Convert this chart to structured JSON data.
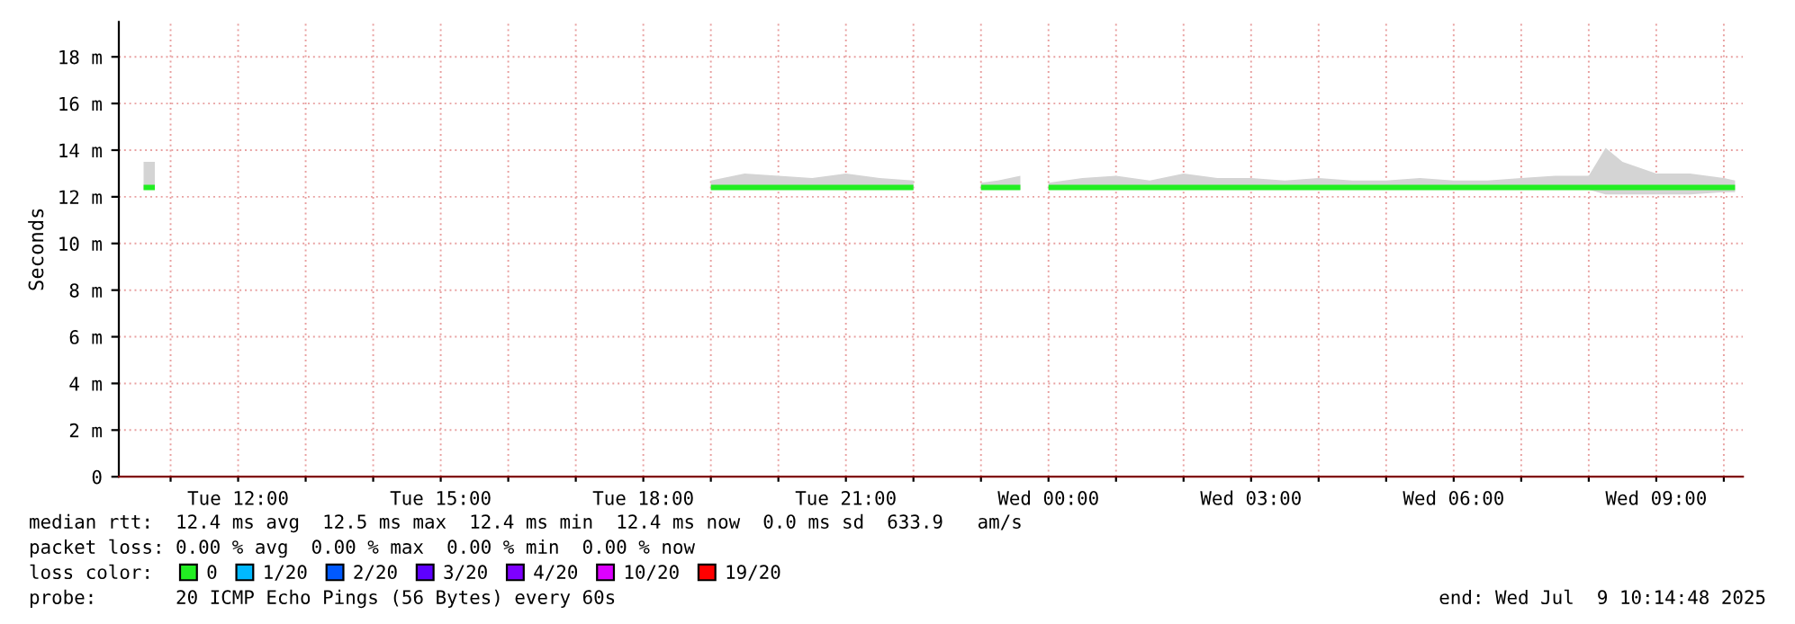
{
  "chart_data": {
    "type": "line",
    "ylabel": "Seconds",
    "x": [
      "2025-07-08T10:36",
      "2025-07-08T10:46",
      "2025-07-08T10:56",
      "2025-07-08T19:00",
      "2025-07-08T19:30",
      "2025-07-08T20:00",
      "2025-07-08T20:30",
      "2025-07-08T21:00",
      "2025-07-08T21:30",
      "2025-07-08T22:00",
      "2025-07-08T22:30",
      "2025-07-08T23:00",
      "2025-07-08T23:15",
      "2025-07-08T23:35",
      "2025-07-08T23:47",
      "2025-07-09T00:00",
      "2025-07-09T00:30",
      "2025-07-09T01:00",
      "2025-07-09T01:30",
      "2025-07-09T02:00",
      "2025-07-09T02:30",
      "2025-07-09T03:00",
      "2025-07-09T03:30",
      "2025-07-09T04:00",
      "2025-07-09T04:30",
      "2025-07-09T05:00",
      "2025-07-09T05:30",
      "2025-07-09T06:00",
      "2025-07-09T06:30",
      "2025-07-09T07:00",
      "2025-07-09T07:30",
      "2025-07-09T08:00",
      "2025-07-09T08:15",
      "2025-07-09T08:30",
      "2025-07-09T09:00",
      "2025-07-09T09:30",
      "2025-07-09T10:00",
      "2025-07-09T10:10"
    ],
    "series": [
      {
        "name": "0",
        "color": "#22ee22",
        "values": [
          12.4,
          12.4,
          null,
          12.4,
          12.4,
          12.4,
          12.4,
          12.4,
          12.4,
          12.4,
          null,
          12.4,
          12.4,
          12.4,
          null,
          12.4,
          12.4,
          12.4,
          12.4,
          12.4,
          12.4,
          12.4,
          12.4,
          12.4,
          12.4,
          12.4,
          12.4,
          12.4,
          12.4,
          12.4,
          12.4,
          12.4,
          12.4,
          12.4,
          12.4,
          12.4,
          12.4,
          12.4
        ],
        "lower": [
          12.3,
          12.3,
          null,
          12.3,
          12.3,
          12.3,
          12.3,
          12.3,
          12.3,
          12.3,
          null,
          12.3,
          12.3,
          12.3,
          null,
          12.3,
          12.3,
          12.3,
          12.3,
          12.3,
          12.3,
          12.3,
          12.3,
          12.3,
          12.3,
          12.3,
          12.3,
          12.3,
          12.3,
          12.3,
          12.3,
          12.3,
          12.1,
          12.1,
          12.1,
          12.1,
          12.2,
          12.2
        ],
        "upper": [
          13.5,
          13.5,
          null,
          12.7,
          13.0,
          12.9,
          12.8,
          13.0,
          12.8,
          12.7,
          null,
          12.6,
          12.7,
          12.9,
          null,
          12.6,
          12.8,
          12.9,
          12.7,
          13.0,
          12.8,
          12.8,
          12.7,
          12.8,
          12.7,
          12.7,
          12.8,
          12.7,
          12.7,
          12.8,
          12.9,
          12.9,
          14.1,
          13.5,
          13.0,
          13.0,
          12.8,
          12.7
        ]
      },
      {
        "name": "1/20",
        "color": "#00b8ff",
        "values": [
          null,
          null,
          null,
          null,
          null,
          null,
          null,
          null,
          null,
          null,
          null,
          null,
          null,
          null,
          null,
          null,
          null,
          null,
          null,
          null,
          null,
          null,
          null,
          null,
          null,
          null,
          null,
          null,
          null,
          null,
          null,
          null,
          null,
          null,
          null,
          null,
          null,
          null
        ]
      },
      {
        "name": "2/20",
        "color": "#0059ff",
        "values": [
          null,
          null,
          null,
          null,
          null,
          null,
          null,
          null,
          null,
          null,
          null,
          null,
          null,
          null,
          null,
          null,
          null,
          null,
          null,
          null,
          null,
          null,
          null,
          null,
          null,
          null,
          null,
          null,
          null,
          null,
          null,
          null,
          null,
          null,
          null,
          null,
          null,
          null
        ]
      },
      {
        "name": "3/20",
        "color": "#5e00ff",
        "values": [
          null,
          null,
          null,
          null,
          null,
          null,
          null,
          null,
          null,
          null,
          null,
          null,
          null,
          null,
          null,
          null,
          null,
          null,
          null,
          null,
          null,
          null,
          null,
          null,
          null,
          null,
          null,
          null,
          null,
          null,
          null,
          null,
          null,
          null,
          null,
          null,
          null,
          null
        ]
      },
      {
        "name": "4/20",
        "color": "#7e00ff",
        "values": [
          null,
          null,
          null,
          null,
          null,
          null,
          null,
          null,
          null,
          null,
          null,
          null,
          null,
          null,
          null,
          null,
          null,
          null,
          null,
          null,
          null,
          null,
          null,
          null,
          null,
          null,
          null,
          null,
          null,
          null,
          null,
          null,
          null,
          null,
          null,
          null,
          null,
          null
        ]
      },
      {
        "name": "10/20",
        "color": "#dd00ff",
        "values": [
          null,
          null,
          null,
          null,
          null,
          null,
          null,
          null,
          null,
          null,
          null,
          null,
          null,
          null,
          null,
          null,
          null,
          null,
          null,
          null,
          null,
          null,
          null,
          null,
          null,
          null,
          null,
          null,
          null,
          null,
          null,
          null,
          null,
          null,
          null,
          null,
          null,
          null
        ]
      },
      {
        "name": "19/20",
        "color": "#ff0000",
        "values": [
          null,
          null,
          null,
          null,
          null,
          null,
          null,
          null,
          null,
          null,
          null,
          null,
          null,
          null,
          null,
          null,
          null,
          null,
          null,
          null,
          null,
          null,
          null,
          null,
          null,
          null,
          null,
          null,
          null,
          null,
          null,
          null,
          null,
          null,
          null,
          null,
          null,
          null
        ]
      }
    ],
    "xlim": [
      "2025-07-08T10:14",
      "2025-07-09T10:17"
    ],
    "xticks": [
      {
        "value": "2025-07-08T11:00",
        "label": null
      },
      {
        "value": "2025-07-08T12:00",
        "label": "Tue 12:00"
      },
      {
        "value": "2025-07-08T13:00",
        "label": null
      },
      {
        "value": "2025-07-08T14:00",
        "label": null
      },
      {
        "value": "2025-07-08T15:00",
        "label": "Tue 15:00"
      },
      {
        "value": "2025-07-08T16:00",
        "label": null
      },
      {
        "value": "2025-07-08T17:00",
        "label": null
      },
      {
        "value": "2025-07-08T18:00",
        "label": "Tue 18:00"
      },
      {
        "value": "2025-07-08T19:00",
        "label": null
      },
      {
        "value": "2025-07-08T20:00",
        "label": null
      },
      {
        "value": "2025-07-08T21:00",
        "label": "Tue 21:00"
      },
      {
        "value": "2025-07-08T22:00",
        "label": null
      },
      {
        "value": "2025-07-08T23:00",
        "label": null
      },
      {
        "value": "2025-07-09T00:00",
        "label": "Wed 00:00"
      },
      {
        "value": "2025-07-09T01:00",
        "label": null
      },
      {
        "value": "2025-07-09T02:00",
        "label": null
      },
      {
        "value": "2025-07-09T03:00",
        "label": "Wed 03:00"
      },
      {
        "value": "2025-07-09T04:00",
        "label": null
      },
      {
        "value": "2025-07-09T05:00",
        "label": null
      },
      {
        "value": "2025-07-09T06:00",
        "label": "Wed 06:00"
      },
      {
        "value": "2025-07-09T07:00",
        "label": null
      },
      {
        "value": "2025-07-09T08:00",
        "label": null
      },
      {
        "value": "2025-07-09T09:00",
        "label": "Wed 09:00"
      },
      {
        "value": "2025-07-09T10:00",
        "label": null
      }
    ],
    "ylim": [
      0,
      19.5
    ],
    "yticks": [
      {
        "value": 0,
        "label": "0"
      },
      {
        "value": 2,
        "label": "2 m"
      },
      {
        "value": 4,
        "label": "4 m"
      },
      {
        "value": 6,
        "label": "6 m"
      },
      {
        "value": 8,
        "label": "8 m"
      },
      {
        "value": 10,
        "label": "10 m"
      },
      {
        "value": 12,
        "label": "12 m"
      },
      {
        "value": 14,
        "label": "14 m"
      },
      {
        "value": 16,
        "label": "16 m"
      },
      {
        "value": 18,
        "label": "18 m"
      }
    ],
    "grid": true,
    "legend": "bottom left",
    "annotations": [
      "median rtt:  12.4 ms avg  12.5 ms max  12.4 ms min  12.4 ms now  0.0 ms sd  633.9   am/s",
      "packet loss: 0.00 % avg  0.00 % max  0.00 % min  0.00 % now",
      "loss color:",
      "probe:       20 ICMP Echo Pings (56 Bytes) every 60s",
      "end: Wed Jul  9 10:14:48 2025"
    ]
  }
}
